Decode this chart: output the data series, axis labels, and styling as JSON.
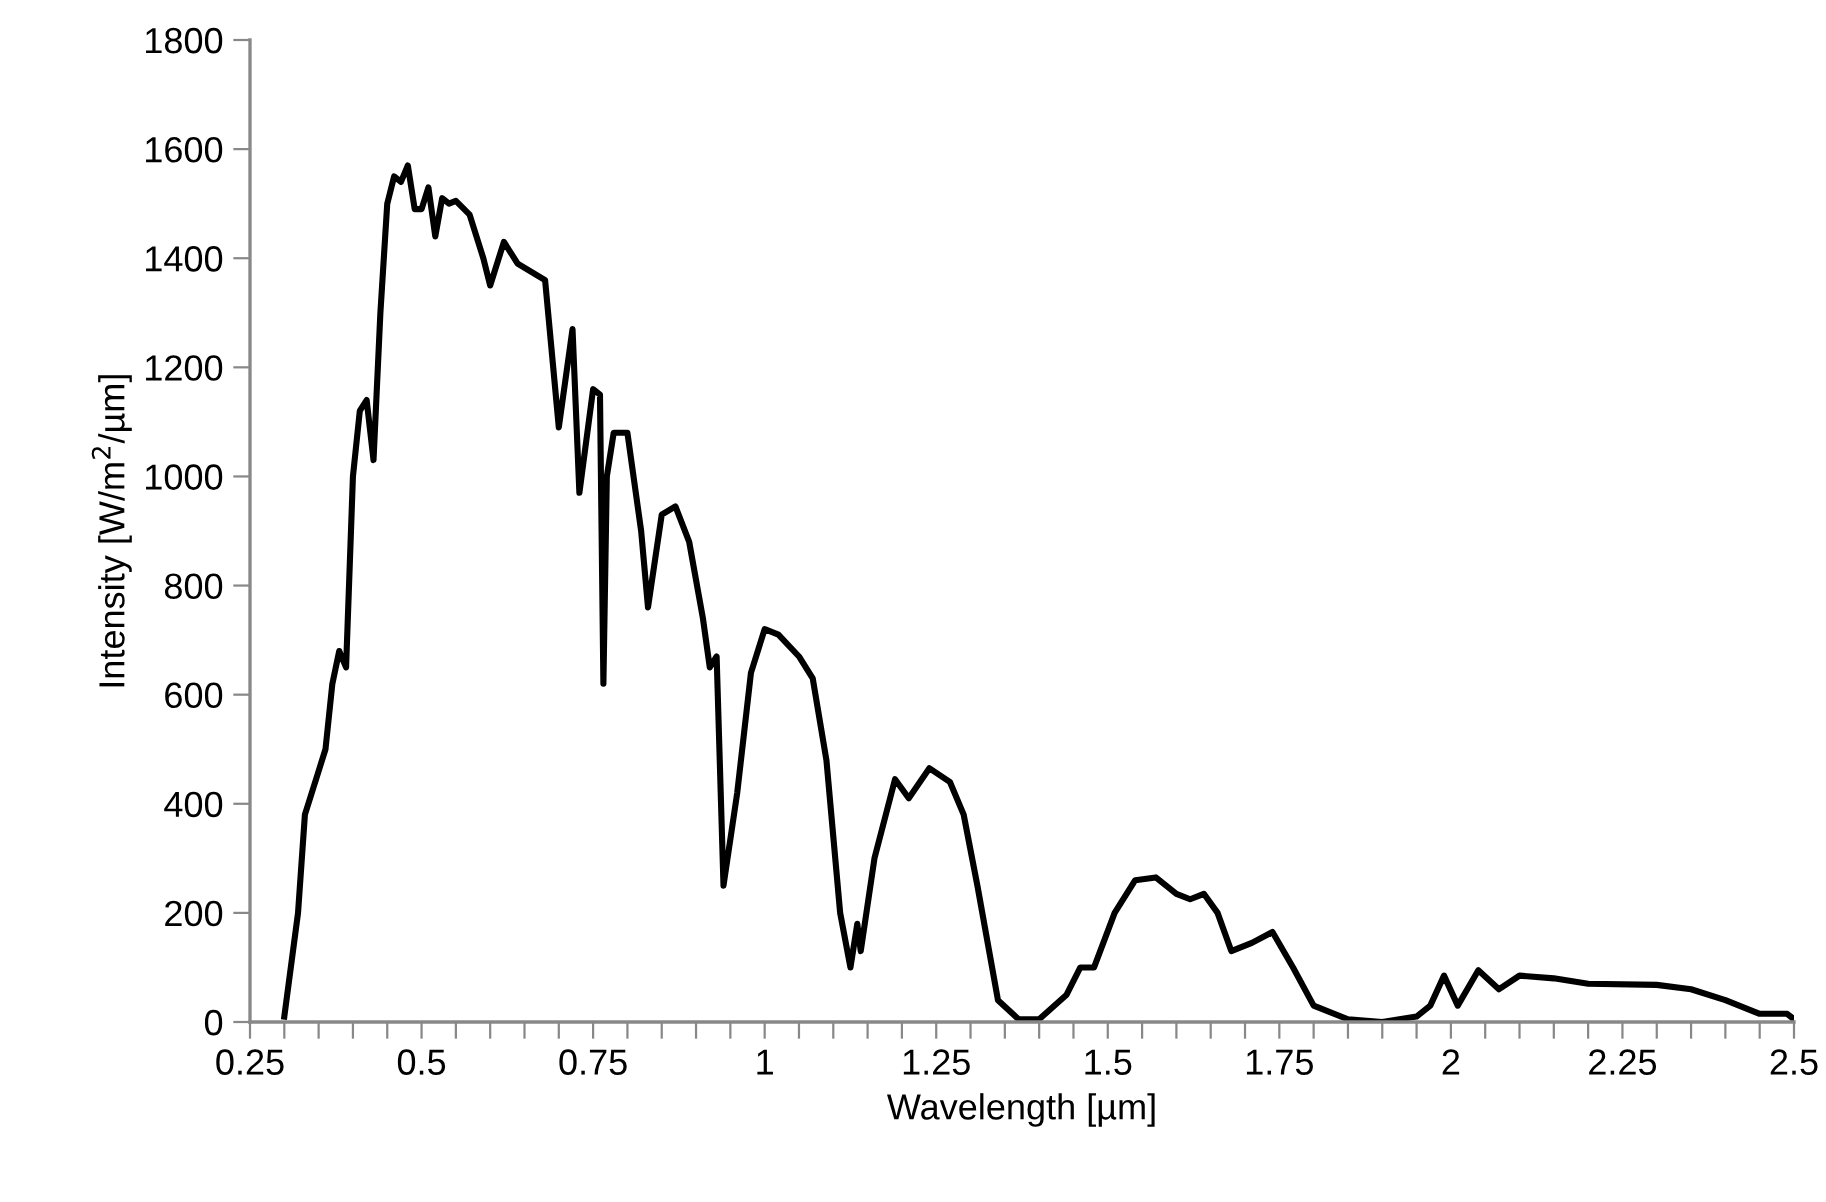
{
  "chart_data": {
    "type": "line",
    "xlabel": "Wavelength [µm]",
    "ylabel": "Intensity [W/m$^{2}$/µm]",
    "x": [
      0.3,
      0.32,
      0.33,
      0.34,
      0.35,
      0.36,
      0.37,
      0.38,
      0.39,
      0.4,
      0.41,
      0.42,
      0.43,
      0.44,
      0.45,
      0.46,
      0.47,
      0.48,
      0.49,
      0.5,
      0.51,
      0.52,
      0.53,
      0.54,
      0.55,
      0.57,
      0.59,
      0.6,
      0.62,
      0.64,
      0.66,
      0.68,
      0.7,
      0.72,
      0.73,
      0.75,
      0.76,
      0.765,
      0.77,
      0.78,
      0.8,
      0.82,
      0.83,
      0.85,
      0.87,
      0.89,
      0.91,
      0.92,
      0.93,
      0.94,
      0.96,
      0.98,
      1.0,
      1.02,
      1.05,
      1.07,
      1.09,
      1.11,
      1.125,
      1.135,
      1.14,
      1.16,
      1.19,
      1.21,
      1.24,
      1.27,
      1.29,
      1.31,
      1.34,
      1.37,
      1.4,
      1.44,
      1.46,
      1.48,
      1.51,
      1.54,
      1.57,
      1.6,
      1.62,
      1.64,
      1.66,
      1.68,
      1.71,
      1.74,
      1.77,
      1.8,
      1.85,
      1.9,
      1.95,
      1.97,
      1.99,
      2.01,
      2.04,
      2.07,
      2.1,
      2.15,
      2.2,
      2.3,
      2.35,
      2.4,
      2.45,
      2.49,
      2.5
    ],
    "series": [
      {
        "color": "#000000",
        "values": [
          10,
          200,
          380,
          420,
          460,
          500,
          620,
          680,
          650,
          1000,
          1120,
          1140,
          1030,
          1300,
          1500,
          1550,
          1540,
          1570,
          1490,
          1490,
          1530,
          1440,
          1510,
          1500,
          1505,
          1480,
          1400,
          1350,
          1430,
          1390,
          1375,
          1360,
          1090,
          1270,
          970,
          1160,
          1150,
          620,
          1000,
          1080,
          1080,
          900,
          760,
          930,
          945,
          880,
          740,
          650,
          670,
          250,
          420,
          640,
          720,
          710,
          670,
          630,
          480,
          200,
          100,
          180,
          130,
          300,
          445,
          410,
          465,
          440,
          380,
          250,
          40,
          5,
          5,
          50,
          100,
          100,
          200,
          260,
          265,
          235,
          225,
          235,
          200,
          130,
          145,
          165,
          100,
          30,
          5,
          0,
          10,
          30,
          85,
          30,
          95,
          60,
          85,
          80,
          70,
          68,
          60,
          40,
          15,
          15,
          5
        ]
      }
    ],
    "xlim": [
      0.25,
      2.5
    ],
    "ylim": [
      0,
      1800
    ],
    "xticks": [
      0.25,
      {
        "value": 0.3,
        "label": null
      },
      {
        "value": 0.35,
        "label": null
      },
      {
        "value": 0.4,
        "label": null
      },
      {
        "value": 0.45,
        "label": null
      },
      0.5,
      {
        "value": 0.55,
        "label": null
      },
      {
        "value": 0.6,
        "label": null
      },
      {
        "value": 0.65,
        "label": null
      },
      {
        "value": 0.7,
        "label": null
      },
      0.75,
      {
        "value": 0.8,
        "label": null
      },
      {
        "value": 0.85,
        "label": null
      },
      {
        "value": 0.9,
        "label": null
      },
      {
        "value": 0.95,
        "label": null
      },
      1,
      {
        "value": 1.05,
        "label": null
      },
      {
        "value": 1.1,
        "label": null
      },
      {
        "value": 1.15,
        "label": null
      },
      {
        "value": 1.2,
        "label": null
      },
      1.25,
      {
        "value": 1.3,
        "label": null
      },
      {
        "value": 1.35,
        "label": null
      },
      {
        "value": 1.4,
        "label": null
      },
      {
        "value": 1.45,
        "label": null
      },
      1.5,
      {
        "value": 1.55,
        "label": null
      },
      {
        "value": 1.6,
        "label": null
      },
      {
        "value": 1.65,
        "label": null
      },
      {
        "value": 1.7,
        "label": null
      },
      1.75,
      {
        "value": 1.8,
        "label": null
      },
      {
        "value": 1.85,
        "label": null
      },
      {
        "value": 1.9,
        "label": null
      },
      {
        "value": 1.95,
        "label": null
      },
      2,
      {
        "value": 2.05,
        "label": null
      },
      {
        "value": 2.1,
        "label": null
      },
      {
        "value": 2.15,
        "label": null
      },
      {
        "value": 2.2,
        "label": null
      },
      2.25,
      {
        "value": 2.3,
        "label": null
      },
      {
        "value": 2.35,
        "label": null
      },
      {
        "value": 2.4,
        "label": null
      },
      {
        "value": 2.45,
        "label": null
      },
      2.5
    ],
    "yticks": [
      0,
      200,
      400,
      600,
      800,
      1000,
      1200,
      1400,
      1600,
      1800
    ],
    "grid": false,
    "legend": false,
    "marker": "none",
    "line_style": "solid"
  }
}
